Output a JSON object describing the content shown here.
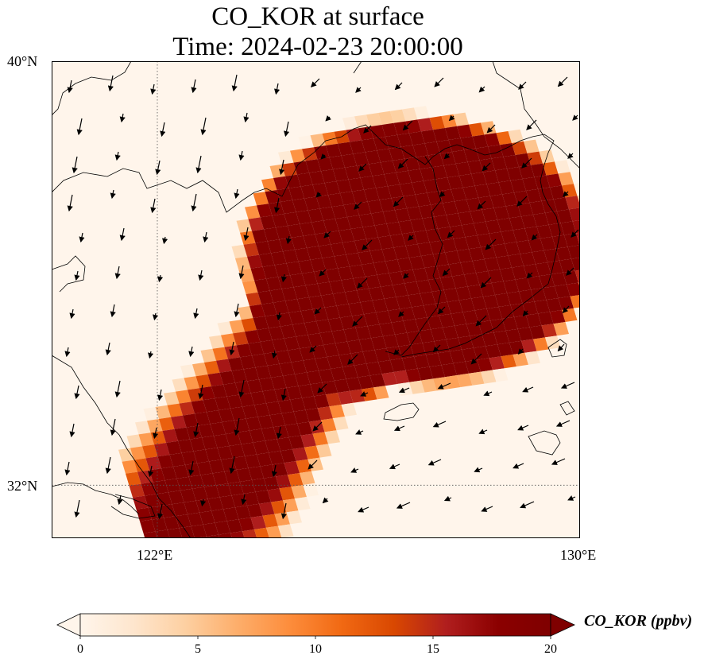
{
  "title": {
    "line1": "CO_KOR at surface",
    "line2": "Time: 2024-02-23 20:00:00"
  },
  "map": {
    "lon_range": [
      120,
      130
    ],
    "lat_range": [
      31,
      40
    ],
    "lat_ticks": [
      {
        "value": 40,
        "label": "40°N"
      },
      {
        "value": 32,
        "label": "32°N"
      }
    ],
    "lon_ticks": [
      {
        "value": 122,
        "label": "122°E"
      },
      {
        "value": 130,
        "label": "130°E"
      }
    ],
    "gridlines": "dotted at 122°E and 32°N",
    "background_color": "#fff5eb",
    "coastline_color": "#000000"
  },
  "colorbar": {
    "label": "CO_KOR (ppbv)",
    "ticks": [
      {
        "value": 0,
        "label": "0"
      },
      {
        "value": 5,
        "label": "5"
      },
      {
        "value": 10,
        "label": "10"
      },
      {
        "value": 15,
        "label": "15"
      },
      {
        "value": 20,
        "label": "20"
      }
    ],
    "range": [
      0,
      20
    ],
    "extend": "both",
    "colormap": "OrRd",
    "colors": [
      "#fff5eb",
      "#fee6ce",
      "#fdd0a2",
      "#fdae6b",
      "#fd8d3c",
      "#f16913",
      "#d94801",
      "#b01e1e",
      "#8b0000",
      "#7f0000"
    ]
  },
  "chart_data": {
    "type": "heatmap",
    "variable": "CO_KOR",
    "units": "ppbv",
    "level": "surface",
    "time": "2024-02-23 20:00:00",
    "plume": "Concentrations up to 20+ ppbv over the Korean Peninsula, extending south-west over the Yellow Sea toward the Yangtze River estuary.",
    "wind_vectors": "Northerly to north-easterly flow over the Yellow Sea; westerly/south-westerly flow near Jeju and the Korea Strait."
  }
}
